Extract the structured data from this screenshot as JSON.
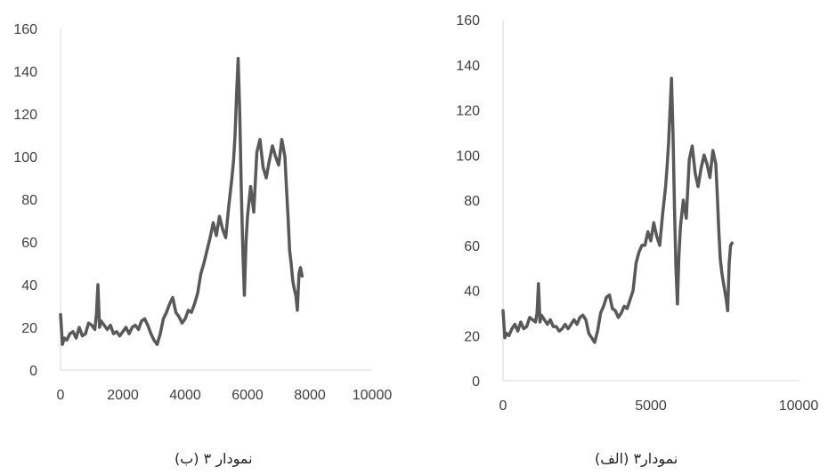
{
  "chart_data": [
    {
      "id": "b",
      "type": "line",
      "caption": "نمودار ۳ (ب)",
      "xlim": [
        0,
        10000
      ],
      "ylim": [
        0,
        160
      ],
      "x_ticks": [
        0,
        2000,
        4000,
        6000,
        8000,
        10000
      ],
      "y_ticks": [
        0,
        20,
        40,
        60,
        80,
        100,
        120,
        140,
        160
      ],
      "grid": false,
      "color": "#595959",
      "series": [
        {
          "x": [
            0,
            60,
            120,
            200,
            300,
            400,
            500,
            600,
            700,
            800,
            900,
            1000,
            1100,
            1150,
            1200,
            1250,
            1300,
            1400,
            1500,
            1600,
            1700,
            1800,
            1900,
            2000,
            2100,
            2200,
            2300,
            2400,
            2500,
            2600,
            2700,
            2800,
            2900,
            3000,
            3100,
            3200,
            3300,
            3400,
            3500,
            3600,
            3700,
            3800,
            3900,
            4000,
            4100,
            4200,
            4300,
            4400,
            4500,
            4600,
            4700,
            4800,
            4900,
            5000,
            5100,
            5200,
            5300,
            5400,
            5500,
            5550,
            5600,
            5650,
            5700,
            5750,
            5800,
            5850,
            5900,
            5950,
            6000,
            6100,
            6200,
            6300,
            6400,
            6500,
            6600,
            6700,
            6800,
            6900,
            7000,
            7100,
            7200,
            7250,
            7300,
            7350,
            7400,
            7450,
            7500,
            7550,
            7600,
            7650,
            7700,
            7750
          ],
          "y": [
            26,
            12,
            15,
            14,
            17,
            18,
            15,
            20,
            16,
            17,
            22,
            21,
            19,
            26,
            40,
            20,
            23,
            21,
            19,
            21,
            17,
            18,
            16,
            18,
            20,
            17,
            20,
            21,
            19,
            23,
            24,
            21,
            17,
            14,
            12,
            17,
            24,
            27,
            31,
            34,
            27,
            25,
            22,
            24,
            28,
            27,
            31,
            36,
            45,
            50,
            56,
            62,
            69,
            63,
            72,
            66,
            62,
            77,
            90,
            98,
            110,
            130,
            146,
            120,
            85,
            55,
            35,
            60,
            72,
            86,
            74,
            102,
            108,
            95,
            90,
            98,
            105,
            100,
            96,
            108,
            100,
            85,
            72,
            56,
            50,
            42,
            38,
            35,
            28,
            45,
            48,
            44
          ]
        }
      ]
    },
    {
      "id": "alef",
      "type": "line",
      "caption": "نمودار۳ (الف)",
      "xlim": [
        0,
        10000
      ],
      "ylim": [
        0,
        160
      ],
      "x_ticks": [
        0,
        5000,
        10000
      ],
      "y_ticks": [
        0,
        20,
        40,
        60,
        80,
        100,
        120,
        140,
        160
      ],
      "grid": false,
      "color": "#595959",
      "series": [
        {
          "x": [
            0,
            60,
            120,
            200,
            300,
            400,
            500,
            600,
            700,
            800,
            900,
            1000,
            1100,
            1150,
            1200,
            1250,
            1300,
            1400,
            1500,
            1600,
            1700,
            1800,
            1900,
            2000,
            2100,
            2200,
            2300,
            2400,
            2500,
            2600,
            2700,
            2800,
            2900,
            3000,
            3100,
            3200,
            3300,
            3400,
            3500,
            3600,
            3700,
            3800,
            3900,
            4000,
            4100,
            4200,
            4300,
            4400,
            4500,
            4600,
            4700,
            4800,
            4900,
            5000,
            5100,
            5200,
            5300,
            5400,
            5500,
            5550,
            5600,
            5650,
            5700,
            5750,
            5800,
            5850,
            5900,
            5950,
            6000,
            6100,
            6200,
            6300,
            6400,
            6500,
            6600,
            6700,
            6800,
            6900,
            7000,
            7100,
            7200,
            7250,
            7300,
            7350,
            7400,
            7450,
            7500,
            7550,
            7600,
            7650,
            7700,
            7750
          ],
          "y": [
            31,
            19,
            21,
            20,
            23,
            25,
            22,
            26,
            23,
            24,
            28,
            27,
            26,
            30,
            43,
            26,
            29,
            27,
            25,
            27,
            24,
            24,
            22,
            23,
            25,
            23,
            25,
            27,
            25,
            28,
            29,
            27,
            21,
            19,
            17,
            22,
            30,
            33,
            37,
            38,
            32,
            31,
            28,
            30,
            33,
            32,
            36,
            40,
            52,
            57,
            60,
            60,
            66,
            62,
            70,
            64,
            60,
            74,
            86,
            95,
            105,
            120,
            134,
            110,
            76,
            50,
            34,
            55,
            68,
            80,
            72,
            98,
            104,
            92,
            86,
            94,
            100,
            96,
            90,
            102,
            96,
            82,
            66,
            54,
            48,
            44,
            40,
            36,
            31,
            52,
            60,
            61
          ]
        }
      ]
    }
  ]
}
